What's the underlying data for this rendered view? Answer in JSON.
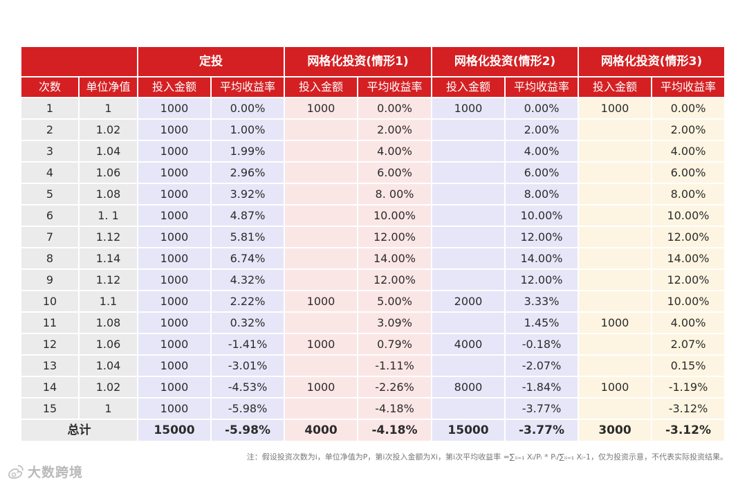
{
  "header": {
    "groups": [
      "定投",
      "网格化投资(情形1)",
      "网格化投资(情形2)",
      "网格化投资(情形3)"
    ],
    "columns": [
      "次数",
      "单位净值",
      "投入金额",
      "平均收益率",
      "投入金额",
      "平均收益率",
      "投入金额",
      "平均收益率",
      "投入金额",
      "平均收益率"
    ]
  },
  "rows": [
    [
      "1",
      "1",
      "1000",
      "0.00%",
      "1000",
      "0.00%",
      "1000",
      "0.00%",
      "1000",
      "0.00%"
    ],
    [
      "2",
      "1.02",
      "1000",
      "1.00%",
      "",
      "2.00%",
      "",
      "2.00%",
      "",
      "2.00%"
    ],
    [
      "3",
      "1.04",
      "1000",
      "1.99%",
      "",
      "4.00%",
      "",
      "4.00%",
      "",
      "4.00%"
    ],
    [
      "4",
      "1.06",
      "1000",
      "2.96%",
      "",
      "6.00%",
      "",
      "6.00%",
      "",
      "6.00%"
    ],
    [
      "5",
      "1.08",
      "1000",
      "3.92%",
      "",
      "8. 00%",
      "",
      "8.00%",
      "",
      "8.00%"
    ],
    [
      "6",
      "1. 1",
      "1000",
      "4.87%",
      "",
      "10.00%",
      "",
      "10.00%",
      "",
      "10.00%"
    ],
    [
      "7",
      "1.12",
      "1000",
      "5.81%",
      "",
      "12.00%",
      "",
      "12.00%",
      "",
      "12.00%"
    ],
    [
      "8",
      "1.14",
      "1000",
      "6.74%",
      "",
      "14.00%",
      "",
      "14.00%",
      "",
      "14.00%"
    ],
    [
      "9",
      "1.12",
      "1000",
      "4.32%",
      "",
      "12.00%",
      "",
      "12.00%",
      "",
      "12.00%"
    ],
    [
      "10",
      "1.1",
      "1000",
      "2.22%",
      "1000",
      "5.00%",
      "2000",
      "3.33%",
      "",
      "10.00%"
    ],
    [
      "11",
      "1.08",
      "1000",
      "0.32%",
      "",
      "3.09%",
      "",
      "1.45%",
      "1000",
      "4.00%"
    ],
    [
      "12",
      "1.06",
      "1000",
      "-1.41%",
      "1000",
      "0.79%",
      "4000",
      "-0.18%",
      "",
      "2.07%"
    ],
    [
      "13",
      "1.04",
      "1000",
      "-3.01%",
      "",
      "-1.11%",
      "",
      "-2.07%",
      "",
      "0.15%"
    ],
    [
      "14",
      "1.02",
      "1000",
      "-4.53%",
      "1000",
      "-2.26%",
      "8000",
      "-1.84%",
      "1000",
      "-1.19%"
    ],
    [
      "15",
      "1",
      "1000",
      "-5.98%",
      "",
      "-4.18%",
      "",
      "-3.77%",
      "",
      "-3.12%"
    ]
  ],
  "total": {
    "label": "总计",
    "values": [
      "15000",
      "-5.98%",
      "4000",
      "-4.18%",
      "15000",
      "-3.77%",
      "3000",
      "-3.12%"
    ]
  },
  "footnote": "注：假设投资次数为i，单位净值为P，第i次投入金额为Xi，第i次平均收益率 =∑ᵢᵢ₌₁ Xᵢ/Pᵢ * Pᵢ/∑ᵢᵢ₌₁ Xᵢ-1，仅为投资示意，不代表实际投资结果。",
  "watermark": {
    "text": "大数跨境",
    "icon": "weibo-icon"
  }
}
